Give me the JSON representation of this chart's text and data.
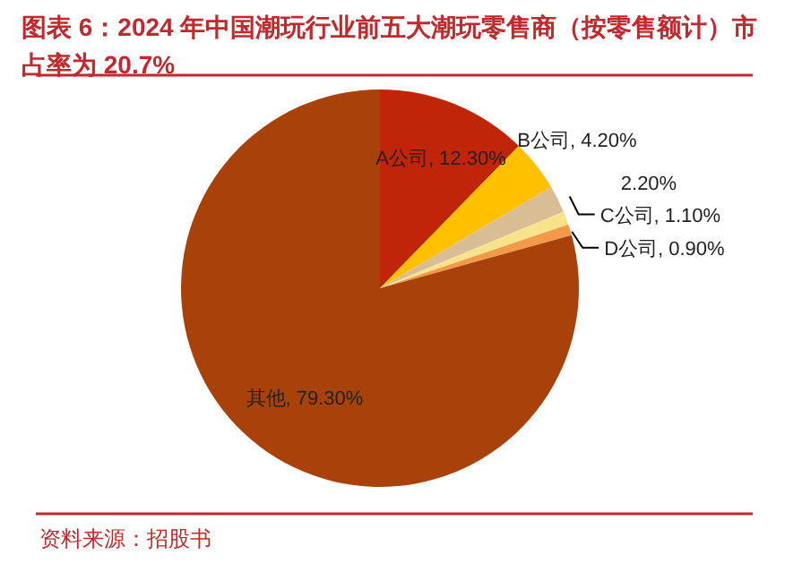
{
  "chart_data": {
    "type": "pie",
    "title": "图表 6：2024 年中国潮玩行业前五大潮玩零售商（按零售额计）市占率为 20.7%",
    "categories": [
      "A公司",
      "B公司",
      null,
      "C公司",
      "D公司",
      "其他"
    ],
    "values": [
      12.3,
      4.2,
      2.2,
      1.1,
      0.9,
      79.3
    ],
    "value_labels": [
      "12.30%",
      "4.20%",
      "2.20%",
      "1.10%",
      "0.90%",
      "79.30%"
    ],
    "colors": [
      "#c0250a",
      "#ffc000",
      "#d8bd95",
      "#f7e48a",
      "#f39a4a",
      "#a8420a"
    ],
    "annotations": [
      "资料来源：招股书"
    ]
  }
}
